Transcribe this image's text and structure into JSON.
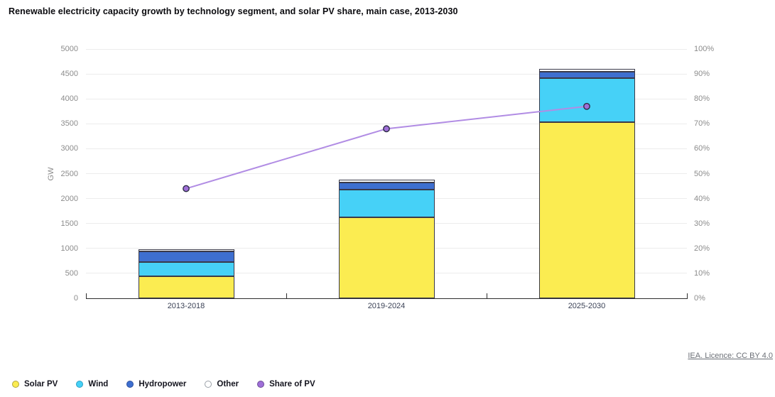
{
  "title": "Renewable electricity capacity growth by technology segment, and solar PV share, main case, 2013-2030",
  "footer": {
    "licence_link": "IEA. Licence: CC BY 4.0"
  },
  "legend": [
    {
      "label": "Solar PV",
      "color": "#FBEC51",
      "border": "#b0a63c"
    },
    {
      "label": "Wind",
      "color": "#46D1F7",
      "border": "#2a9fc4"
    },
    {
      "label": "Hydropower",
      "color": "#3E6FD0",
      "border": "#2b4f9e"
    },
    {
      "label": "Other",
      "color": "#FFFFFF",
      "border": "#9aa0a8"
    },
    {
      "label": "Share of PV",
      "color": "#9F6FD8",
      "border": "#6a4b96"
    }
  ],
  "chart_data": {
    "type": "bar",
    "subtype": "stacked-bars-with-line",
    "categories": [
      "2013-2018",
      "2019-2024",
      "2025-2030"
    ],
    "series": [
      {
        "name": "Solar PV",
        "kind": "bar",
        "color": "#FBEC51",
        "values": [
          440,
          1620,
          3530
        ]
      },
      {
        "name": "Wind",
        "kind": "bar",
        "color": "#46D1F7",
        "values": [
          290,
          560,
          890
        ]
      },
      {
        "name": "Hydropower",
        "kind": "bar",
        "color": "#3E6FD0",
        "values": [
          215,
          135,
          130
        ]
      },
      {
        "name": "Other",
        "kind": "bar",
        "color": "#FFFFFF",
        "values": [
          45,
          60,
          50
        ]
      },
      {
        "name": "Share of PV",
        "kind": "line",
        "axis": "right",
        "color": "#B18CE4",
        "marker_color": "#9F6FD8",
        "marker_border": "#2d2d45",
        "values": [
          44,
          68,
          77
        ]
      }
    ],
    "totals_gw": [
      990,
      2375,
      4600
    ],
    "left_axis": {
      "label": "GW",
      "min": 0,
      "max": 5000,
      "step": 500,
      "tick_labels": [
        "0",
        "500",
        "1000",
        "1500",
        "2000",
        "2500",
        "3000",
        "3500",
        "4000",
        "4500",
        "5000"
      ]
    },
    "right_axis": {
      "min": 0,
      "max": 100,
      "step": 10,
      "tick_labels": [
        "0%",
        "10%",
        "20%",
        "30%",
        "40%",
        "50%",
        "60%",
        "70%",
        "80%",
        "90%",
        "100%"
      ]
    },
    "grid": true,
    "grid_color": "#ececec",
    "legend_position": "bottom-left"
  }
}
